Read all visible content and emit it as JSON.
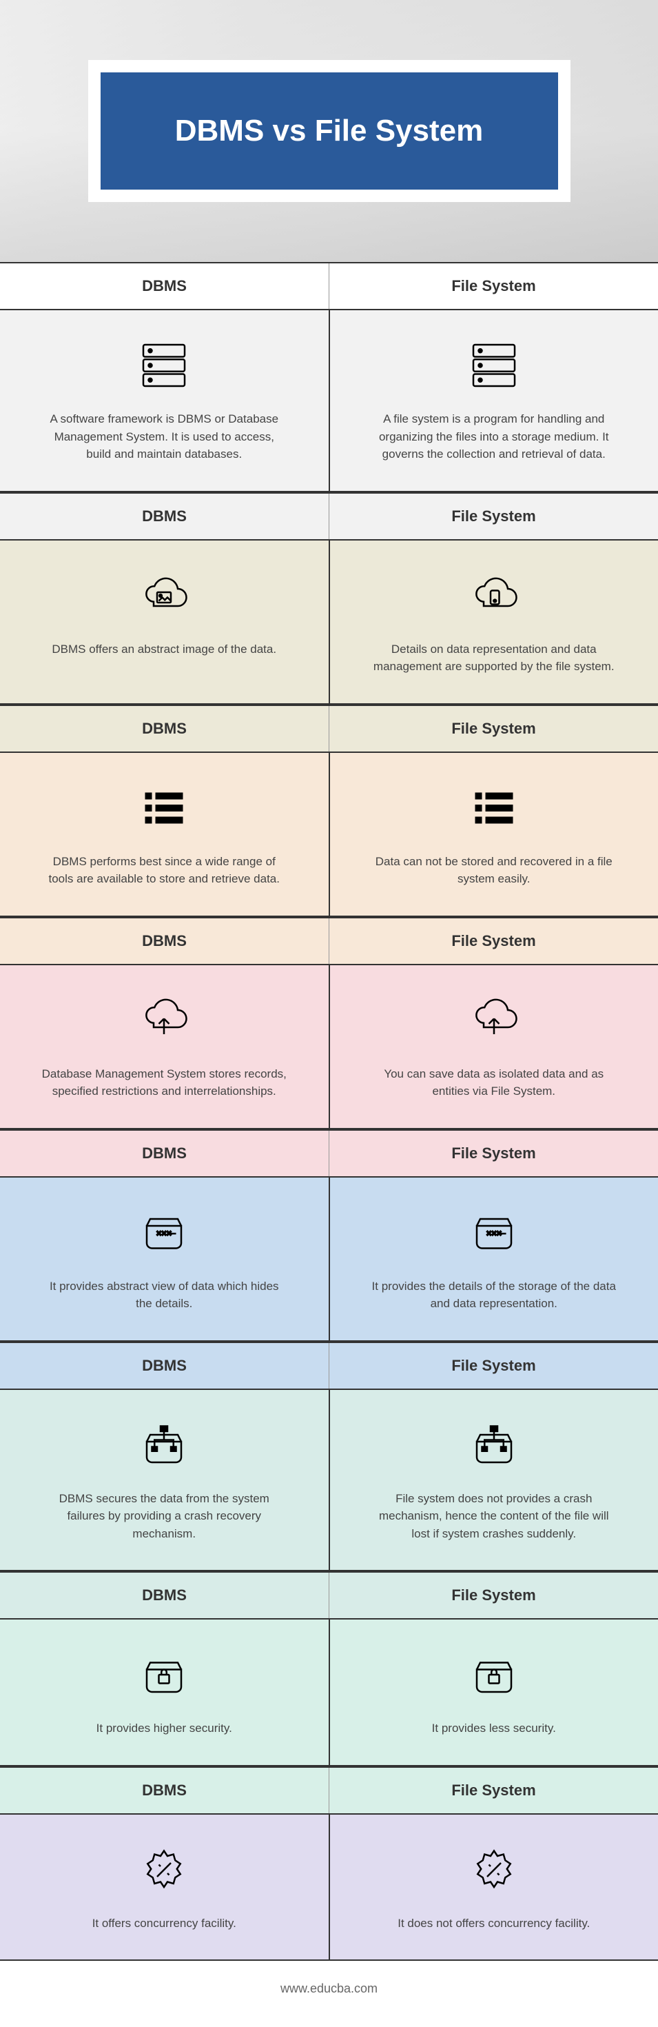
{
  "title": "DBMS vs File System",
  "footer": "www.educba.com",
  "columns": {
    "left": "DBMS",
    "right": "File System"
  },
  "sections": [
    {
      "header_bg": "#ffffff",
      "body_bg": "#f2f2f2",
      "icon": "server",
      "left": "A software framework is DBMS or Database Management System. It is used to access, build and maintain databases.",
      "right": "A file system is a program for handling and organizing the files into a storage medium. It governs the collection and retrieval of data."
    },
    {
      "header_bg": "#f2f2f2",
      "body_bg": "#ece9d8",
      "icon": "cloud-img",
      "left": "DBMS offers an abstract image of the data.",
      "right": "Details on data representation and data management are supported by the file system.",
      "right_icon": "cloud-device"
    },
    {
      "header_bg": "#ece9d8",
      "body_bg": "#f8e8d8",
      "icon": "list",
      "left": "DBMS performs best since a wide range of tools are available to store and retrieve data.",
      "right": "Data can not be stored and recovered in a file system easily."
    },
    {
      "header_bg": "#f8e8d8",
      "body_bg": "#f8dce0",
      "icon": "cloud-up",
      "left": "Database Management System stores records, specified restrictions and interrelationships.",
      "right": "You can save data as isolated data and as entities via File System."
    },
    {
      "header_bg": "#f8dce0",
      "body_bg": "#c8dcf0",
      "icon": "storage",
      "left": "It provides abstract view of data which hides the details.",
      "right": "It provides the details of the storage of the data and data representation."
    },
    {
      "header_bg": "#c8dcf0",
      "body_bg": "#d8ece8",
      "icon": "network",
      "left": "DBMS secures the data from the system failures by providing a crash recovery mechanism.",
      "right": "File system does not provides a crash mechanism, hence the content of the file will lost if system crashes suddenly."
    },
    {
      "header_bg": "#d8ece8",
      "body_bg": "#d8f0e8",
      "icon": "lock",
      "left": "It provides higher security.",
      "right": "It provides less security."
    },
    {
      "header_bg": "#d8f0e8",
      "body_bg": "#e0dcf0",
      "icon": "badge",
      "left": "It offers concurrency facility.",
      "right": "It does not offers concurrency facility."
    }
  ],
  "colors": {
    "title_bg": "#2a5a9a",
    "title_fg": "#ffffff",
    "border": "#333333",
    "text": "#444444"
  }
}
